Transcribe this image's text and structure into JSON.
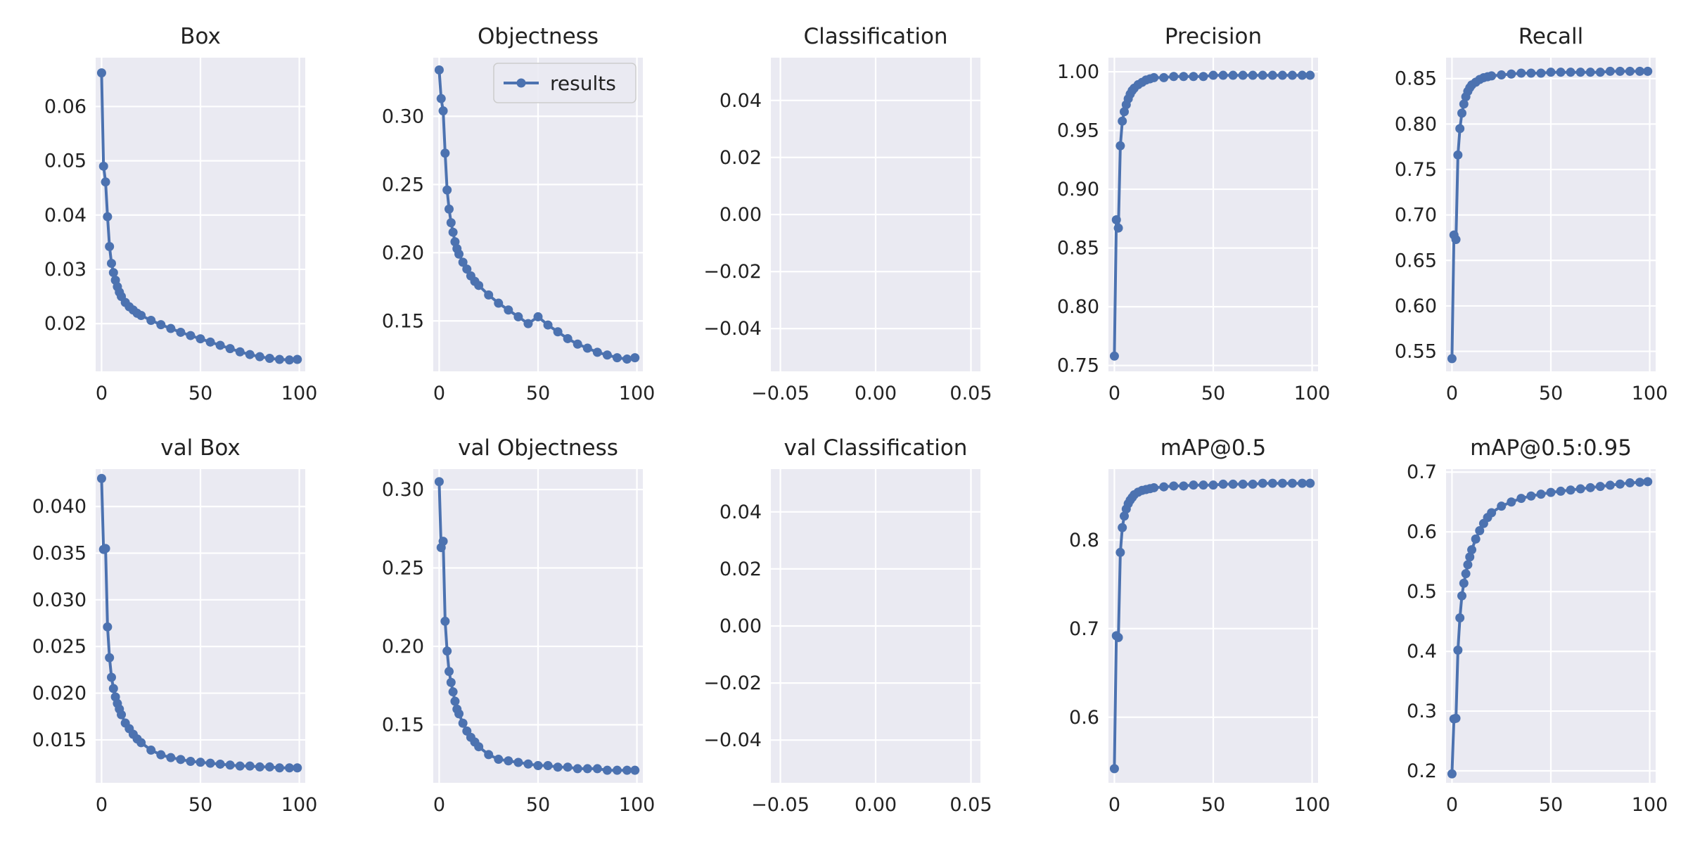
{
  "colors": {
    "panel_bg": "#eaeaf2",
    "grid": "#ffffff",
    "series": "#4c72b0",
    "text": "#222222"
  },
  "chart_data": [
    {
      "type": "line",
      "title": "Box",
      "x": [
        0,
        1,
        2,
        3,
        4,
        5,
        6,
        7,
        8,
        9,
        10,
        12,
        14,
        16,
        18,
        20,
        25,
        30,
        35,
        40,
        45,
        50,
        55,
        60,
        65,
        70,
        75,
        80,
        85,
        90,
        95,
        99
      ],
      "series": [
        {
          "name": "results",
          "values": [
            0.0662,
            0.049,
            0.0461,
            0.0397,
            0.0342,
            0.0311,
            0.0294,
            0.028,
            0.0268,
            0.0258,
            0.025,
            0.0239,
            0.0231,
            0.0225,
            0.0219,
            0.0215,
            0.0206,
            0.0198,
            0.0191,
            0.0184,
            0.0178,
            0.0172,
            0.0166,
            0.016,
            0.0154,
            0.0148,
            0.0143,
            0.0139,
            0.0136,
            0.0134,
            0.0133,
            0.0134
          ]
        }
      ],
      "xlim": [
        -3,
        103
      ],
      "ylim": [
        0.0112,
        0.069
      ],
      "xticks": [
        0,
        50,
        100
      ],
      "xtick_labels": [
        "0",
        "50",
        "100"
      ],
      "yticks": [
        0.02,
        0.03,
        0.04,
        0.05,
        0.06
      ],
      "ytick_labels": [
        "0.02",
        "0.03",
        "0.04",
        "0.05",
        "0.06"
      ],
      "grid": true
    },
    {
      "type": "line",
      "title": "Objectness",
      "x": [
        0,
        1,
        2,
        3,
        4,
        5,
        6,
        7,
        8,
        9,
        10,
        12,
        14,
        16,
        18,
        20,
        25,
        30,
        35,
        40,
        45,
        50,
        55,
        60,
        65,
        70,
        75,
        80,
        85,
        90,
        95,
        99
      ],
      "series": [
        {
          "name": "results",
          "values": [
            0.334,
            0.313,
            0.304,
            0.273,
            0.246,
            0.232,
            0.222,
            0.215,
            0.208,
            0.203,
            0.199,
            0.193,
            0.188,
            0.183,
            0.179,
            0.176,
            0.169,
            0.163,
            0.158,
            0.153,
            0.148,
            0.153,
            0.147,
            0.142,
            0.137,
            0.133,
            0.13,
            0.127,
            0.125,
            0.123,
            0.122,
            0.123
          ]
        }
      ],
      "xlim": [
        -3,
        103
      ],
      "ylim": [
        0.113,
        0.343
      ],
      "xticks": [
        0,
        50,
        100
      ],
      "xtick_labels": [
        "0",
        "50",
        "100"
      ],
      "yticks": [
        0.15,
        0.2,
        0.25,
        0.3
      ],
      "ytick_labels": [
        "0.15",
        "0.20",
        "0.25",
        "0.30"
      ],
      "grid": true,
      "legend": {
        "label": "results",
        "placement": "top-right"
      }
    },
    {
      "type": "line",
      "title": "Classification",
      "x": [],
      "series": [],
      "xlim": [
        -0.055,
        0.055
      ],
      "ylim": [
        -0.055,
        0.055
      ],
      "xticks": [
        -0.05,
        0.0,
        0.05
      ],
      "xtick_labels": [
        "−0.05",
        "0.00",
        "0.05"
      ],
      "yticks": [
        -0.04,
        -0.02,
        0.0,
        0.02,
        0.04
      ],
      "ytick_labels": [
        "−0.04",
        "−0.02",
        "0.00",
        "0.02",
        "0.04"
      ],
      "grid": true
    },
    {
      "type": "line",
      "title": "Precision",
      "x": [
        0,
        1,
        2,
        3,
        4,
        5,
        6,
        7,
        8,
        9,
        10,
        12,
        14,
        16,
        18,
        20,
        25,
        30,
        35,
        40,
        45,
        50,
        55,
        60,
        65,
        70,
        75,
        80,
        85,
        90,
        95,
        99
      ],
      "series": [
        {
          "name": "results",
          "values": [
            0.758,
            0.874,
            0.867,
            0.937,
            0.958,
            0.966,
            0.972,
            0.977,
            0.981,
            0.984,
            0.986,
            0.989,
            0.991,
            0.993,
            0.994,
            0.995,
            0.995,
            0.996,
            0.996,
            0.996,
            0.996,
            0.997,
            0.997,
            0.997,
            0.997,
            0.997,
            0.997,
            0.997,
            0.997,
            0.997,
            0.997,
            0.997
          ]
        }
      ],
      "xlim": [
        -3,
        103
      ],
      "ylim": [
        0.745,
        1.012
      ],
      "xticks": [
        0,
        50,
        100
      ],
      "xtick_labels": [
        "0",
        "50",
        "100"
      ],
      "yticks": [
        0.75,
        0.8,
        0.85,
        0.9,
        0.95,
        1.0
      ],
      "ytick_labels": [
        "0.75",
        "0.80",
        "0.85",
        "0.90",
        "0.95",
        "1.00"
      ],
      "grid": true
    },
    {
      "type": "line",
      "title": "Recall",
      "x": [
        0,
        1,
        2,
        3,
        4,
        5,
        6,
        7,
        8,
        9,
        10,
        12,
        14,
        16,
        18,
        20,
        25,
        30,
        35,
        40,
        45,
        50,
        55,
        60,
        65,
        70,
        75,
        80,
        85,
        90,
        95,
        99
      ],
      "series": [
        {
          "name": "results",
          "values": [
            0.542,
            0.678,
            0.673,
            0.766,
            0.795,
            0.812,
            0.822,
            0.83,
            0.836,
            0.84,
            0.843,
            0.846,
            0.849,
            0.851,
            0.852,
            0.853,
            0.854,
            0.855,
            0.856,
            0.856,
            0.856,
            0.857,
            0.857,
            0.857,
            0.857,
            0.857,
            0.857,
            0.858,
            0.858,
            0.858,
            0.858,
            0.858
          ]
        }
      ],
      "xlim": [
        -3,
        103
      ],
      "ylim": [
        0.528,
        0.873
      ],
      "xticks": [
        0,
        50,
        100
      ],
      "xtick_labels": [
        "0",
        "50",
        "100"
      ],
      "yticks": [
        0.55,
        0.6,
        0.65,
        0.7,
        0.75,
        0.8,
        0.85
      ],
      "ytick_labels": [
        "0.55",
        "0.60",
        "0.65",
        "0.70",
        "0.75",
        "0.80",
        "0.85"
      ],
      "grid": true
    },
    {
      "type": "line",
      "title": "val Box",
      "x": [
        0,
        1,
        2,
        3,
        4,
        5,
        6,
        7,
        8,
        9,
        10,
        12,
        14,
        16,
        18,
        20,
        25,
        30,
        35,
        40,
        45,
        50,
        55,
        60,
        65,
        70,
        75,
        80,
        85,
        90,
        95,
        99
      ],
      "series": [
        {
          "name": "results",
          "values": [
            0.043,
            0.0354,
            0.0355,
            0.0271,
            0.0238,
            0.0217,
            0.0205,
            0.0196,
            0.0189,
            0.0183,
            0.0177,
            0.0168,
            0.0162,
            0.0156,
            0.0151,
            0.0147,
            0.0139,
            0.0134,
            0.0131,
            0.0129,
            0.0127,
            0.0126,
            0.0125,
            0.0124,
            0.0123,
            0.0122,
            0.0122,
            0.0121,
            0.0121,
            0.012,
            0.012,
            0.012
          ]
        }
      ],
      "xlim": [
        -3,
        103
      ],
      "ylim": [
        0.0104,
        0.044
      ],
      "xticks": [
        0,
        50,
        100
      ],
      "xtick_labels": [
        "0",
        "50",
        "100"
      ],
      "yticks": [
        0.015,
        0.02,
        0.025,
        0.03,
        0.035,
        0.04
      ],
      "ytick_labels": [
        "0.015",
        "0.020",
        "0.025",
        "0.030",
        "0.035",
        "0.040"
      ],
      "grid": true
    },
    {
      "type": "line",
      "title": "val Objectness",
      "x": [
        0,
        1,
        2,
        3,
        4,
        5,
        6,
        7,
        8,
        9,
        10,
        12,
        14,
        16,
        18,
        20,
        25,
        30,
        35,
        40,
        45,
        50,
        55,
        60,
        65,
        70,
        75,
        80,
        85,
        90,
        95,
        99
      ],
      "series": [
        {
          "name": "results",
          "values": [
            0.305,
            0.263,
            0.267,
            0.216,
            0.197,
            0.184,
            0.177,
            0.171,
            0.165,
            0.16,
            0.157,
            0.151,
            0.146,
            0.142,
            0.139,
            0.136,
            0.131,
            0.128,
            0.127,
            0.126,
            0.125,
            0.124,
            0.124,
            0.123,
            0.123,
            0.122,
            0.122,
            0.122,
            0.121,
            0.121,
            0.121,
            0.121
          ]
        }
      ],
      "xlim": [
        -3,
        103
      ],
      "ylim": [
        0.113,
        0.313
      ],
      "xticks": [
        0,
        50,
        100
      ],
      "xtick_labels": [
        "0",
        "50",
        "100"
      ],
      "yticks": [
        0.15,
        0.2,
        0.25,
        0.3
      ],
      "ytick_labels": [
        "0.15",
        "0.20",
        "0.25",
        "0.30"
      ],
      "grid": true
    },
    {
      "type": "line",
      "title": "val Classification",
      "x": [],
      "series": [],
      "xlim": [
        -0.055,
        0.055
      ],
      "ylim": [
        -0.055,
        0.055
      ],
      "xticks": [
        -0.05,
        0.0,
        0.05
      ],
      "xtick_labels": [
        "−0.05",
        "0.00",
        "0.05"
      ],
      "yticks": [
        -0.04,
        -0.02,
        0.0,
        0.02,
        0.04
      ],
      "ytick_labels": [
        "−0.04",
        "−0.02",
        "0.00",
        "0.02",
        "0.04"
      ],
      "grid": true
    },
    {
      "type": "line",
      "title": "mAP@0.5",
      "x": [
        0,
        1,
        2,
        3,
        4,
        5,
        6,
        7,
        8,
        9,
        10,
        12,
        14,
        16,
        18,
        20,
        25,
        30,
        35,
        40,
        45,
        50,
        55,
        60,
        65,
        70,
        75,
        80,
        85,
        90,
        95,
        99
      ],
      "series": [
        {
          "name": "results",
          "values": [
            0.542,
            0.692,
            0.69,
            0.786,
            0.814,
            0.827,
            0.835,
            0.841,
            0.845,
            0.848,
            0.851,
            0.854,
            0.856,
            0.857,
            0.858,
            0.859,
            0.86,
            0.861,
            0.861,
            0.862,
            0.862,
            0.862,
            0.863,
            0.863,
            0.863,
            0.863,
            0.864,
            0.864,
            0.864,
            0.864,
            0.864,
            0.864
          ]
        }
      ],
      "xlim": [
        -3,
        103
      ],
      "ylim": [
        0.526,
        0.88
      ],
      "xticks": [
        0,
        50,
        100
      ],
      "xtick_labels": [
        "0",
        "50",
        "100"
      ],
      "yticks": [
        0.6,
        0.7,
        0.8
      ],
      "ytick_labels": [
        "0.6",
        "0.7",
        "0.8"
      ],
      "grid": true
    },
    {
      "type": "line",
      "title": "mAP@0.5:0.95",
      "x": [
        0,
        1,
        2,
        3,
        4,
        5,
        6,
        7,
        8,
        9,
        10,
        12,
        14,
        16,
        18,
        20,
        25,
        30,
        35,
        40,
        45,
        50,
        55,
        60,
        65,
        70,
        75,
        80,
        85,
        90,
        95,
        99
      ],
      "series": [
        {
          "name": "results",
          "values": [
            0.195,
            0.287,
            0.288,
            0.402,
            0.456,
            0.493,
            0.514,
            0.53,
            0.545,
            0.558,
            0.57,
            0.588,
            0.602,
            0.614,
            0.624,
            0.632,
            0.643,
            0.65,
            0.656,
            0.66,
            0.663,
            0.666,
            0.668,
            0.67,
            0.672,
            0.674,
            0.676,
            0.678,
            0.68,
            0.682,
            0.683,
            0.684
          ]
        }
      ],
      "xlim": [
        -3,
        103
      ],
      "ylim": [
        0.18,
        0.705
      ],
      "xticks": [
        0,
        50,
        100
      ],
      "xtick_labels": [
        "0",
        "50",
        "100"
      ],
      "yticks": [
        0.2,
        0.3,
        0.4,
        0.5,
        0.6,
        0.7
      ],
      "ytick_labels": [
        "0.2",
        "0.3",
        "0.4",
        "0.5",
        "0.6",
        "0.7"
      ],
      "grid": true
    }
  ]
}
